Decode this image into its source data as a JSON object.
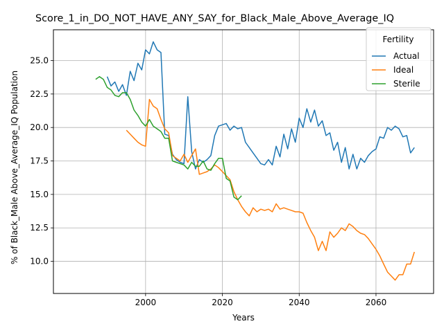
{
  "chart_data": {
    "type": "line",
    "title": "Score_1_in_DO_NOT_HAVE_ANY_SAY_for_Black_Male_Above_Average_IQ",
    "xlabel": "Years",
    "ylabel": "% of Black_Male Above_Average_IQ Population",
    "xlim": [
      1976,
      2075
    ],
    "ylim": [
      7.6,
      27.3
    ],
    "xticks": [
      2000,
      2020,
      2040,
      2060
    ],
    "yticks": [
      10.0,
      12.5,
      15.0,
      17.5,
      20.0,
      22.5,
      25.0
    ],
    "grid": true,
    "legend": {
      "title": "Fertility",
      "position": "top-right"
    },
    "series": [
      {
        "name": "Actual",
        "color": "#1f77b4",
        "points": [
          [
            1990,
            23.8
          ],
          [
            1991,
            23.1
          ],
          [
            1992,
            23.4
          ],
          [
            1993,
            22.7
          ],
          [
            1994,
            23.2
          ],
          [
            1995,
            22.4
          ],
          [
            1996,
            24.2
          ],
          [
            1997,
            23.5
          ],
          [
            1998,
            24.8
          ],
          [
            1999,
            24.3
          ],
          [
            2000,
            25.8
          ],
          [
            2001,
            25.5
          ],
          [
            2002,
            26.4
          ],
          [
            2003,
            25.8
          ],
          [
            2004,
            25.6
          ],
          [
            2005,
            19.5
          ],
          [
            2006,
            19.4
          ],
          [
            2007,
            18.0
          ],
          [
            2008,
            17.6
          ],
          [
            2009,
            17.4
          ],
          [
            2010,
            17.3
          ],
          [
            2011,
            22.3
          ],
          [
            2012,
            18.2
          ],
          [
            2013,
            16.9
          ],
          [
            2014,
            17.6
          ],
          [
            2015,
            17.4
          ],
          [
            2016,
            17.6
          ],
          [
            2017,
            17.9
          ],
          [
            2018,
            19.4
          ],
          [
            2019,
            20.1
          ],
          [
            2020,
            20.2
          ],
          [
            2021,
            20.3
          ],
          [
            2022,
            19.8
          ],
          [
            2023,
            20.1
          ],
          [
            2024,
            19.9
          ],
          [
            2025,
            20.0
          ],
          [
            2026,
            18.9
          ],
          [
            2027,
            18.5
          ],
          [
            2028,
            18.1
          ],
          [
            2029,
            17.7
          ],
          [
            2030,
            17.3
          ],
          [
            2031,
            17.2
          ],
          [
            2032,
            17.6
          ],
          [
            2033,
            17.2
          ],
          [
            2034,
            18.6
          ],
          [
            2035,
            17.8
          ],
          [
            2036,
            19.5
          ],
          [
            2037,
            18.4
          ],
          [
            2038,
            19.9
          ],
          [
            2039,
            18.9
          ],
          [
            2040,
            20.7
          ],
          [
            2041,
            20.0
          ],
          [
            2042,
            21.4
          ],
          [
            2043,
            20.4
          ],
          [
            2044,
            21.3
          ],
          [
            2045,
            20.1
          ],
          [
            2046,
            20.5
          ],
          [
            2047,
            19.4
          ],
          [
            2048,
            19.6
          ],
          [
            2049,
            18.3
          ],
          [
            2050,
            18.9
          ],
          [
            2051,
            17.4
          ],
          [
            2052,
            18.5
          ],
          [
            2053,
            16.9
          ],
          [
            2054,
            18.0
          ],
          [
            2055,
            16.9
          ],
          [
            2056,
            17.7
          ],
          [
            2057,
            17.4
          ],
          [
            2058,
            17.9
          ],
          [
            2059,
            18.2
          ],
          [
            2060,
            18.4
          ],
          [
            2061,
            19.3
          ],
          [
            2062,
            19.2
          ],
          [
            2063,
            20.0
          ],
          [
            2064,
            19.8
          ],
          [
            2065,
            20.1
          ],
          [
            2066,
            19.9
          ],
          [
            2067,
            19.3
          ],
          [
            2068,
            19.4
          ],
          [
            2069,
            18.1
          ],
          [
            2070,
            18.5
          ]
        ]
      },
      {
        "name": "Ideal",
        "color": "#ff7f0e",
        "points": [
          [
            1995,
            19.8
          ],
          [
            1996,
            19.5
          ],
          [
            1997,
            19.2
          ],
          [
            1998,
            18.9
          ],
          [
            1999,
            18.7
          ],
          [
            2000,
            18.6
          ],
          [
            2001,
            22.1
          ],
          [
            2002,
            21.6
          ],
          [
            2003,
            21.4
          ],
          [
            2004,
            20.6
          ],
          [
            2005,
            19.9
          ],
          [
            2006,
            19.6
          ],
          [
            2007,
            17.9
          ],
          [
            2008,
            17.7
          ],
          [
            2009,
            17.5
          ],
          [
            2010,
            18.0
          ],
          [
            2011,
            17.4
          ],
          [
            2012,
            17.9
          ],
          [
            2013,
            18.4
          ],
          [
            2014,
            16.5
          ],
          [
            2015,
            16.6
          ],
          [
            2016,
            16.7
          ],
          [
            2017,
            16.9
          ],
          [
            2018,
            17.2
          ],
          [
            2019,
            17.0
          ],
          [
            2020,
            16.7
          ],
          [
            2021,
            16.4
          ],
          [
            2022,
            16.1
          ],
          [
            2023,
            15.2
          ],
          [
            2024,
            14.6
          ],
          [
            2025,
            14.1
          ],
          [
            2026,
            13.7
          ],
          [
            2027,
            13.4
          ],
          [
            2028,
            14.0
          ],
          [
            2029,
            13.7
          ],
          [
            2030,
            13.9
          ],
          [
            2031,
            13.8
          ],
          [
            2032,
            13.9
          ],
          [
            2033,
            13.7
          ],
          [
            2034,
            14.3
          ],
          [
            2035,
            13.9
          ],
          [
            2036,
            14.0
          ],
          [
            2037,
            13.9
          ],
          [
            2038,
            13.8
          ],
          [
            2039,
            13.7
          ],
          [
            2040,
            13.7
          ],
          [
            2041,
            13.6
          ],
          [
            2042,
            12.9
          ],
          [
            2043,
            12.3
          ],
          [
            2044,
            11.8
          ],
          [
            2045,
            10.8
          ],
          [
            2046,
            11.5
          ],
          [
            2047,
            10.8
          ],
          [
            2048,
            12.2
          ],
          [
            2049,
            11.8
          ],
          [
            2050,
            12.1
          ],
          [
            2051,
            12.5
          ],
          [
            2052,
            12.3
          ],
          [
            2053,
            12.8
          ],
          [
            2054,
            12.6
          ],
          [
            2055,
            12.3
          ],
          [
            2056,
            12.1
          ],
          [
            2057,
            12.0
          ],
          [
            2058,
            11.7
          ],
          [
            2059,
            11.3
          ],
          [
            2060,
            10.9
          ],
          [
            2061,
            10.4
          ],
          [
            2062,
            9.8
          ],
          [
            2063,
            9.2
          ],
          [
            2064,
            8.9
          ],
          [
            2065,
            8.6
          ],
          [
            2066,
            9.0
          ],
          [
            2067,
            9.0
          ],
          [
            2068,
            9.8
          ],
          [
            2069,
            9.8
          ],
          [
            2070,
            10.7
          ]
        ]
      },
      {
        "name": "Sterile",
        "color": "#2ca02c",
        "points": [
          [
            1987,
            23.6
          ],
          [
            1988,
            23.8
          ],
          [
            1989,
            23.6
          ],
          [
            1990,
            23.0
          ],
          [
            1991,
            22.8
          ],
          [
            1992,
            22.4
          ],
          [
            1993,
            22.3
          ],
          [
            1994,
            22.6
          ],
          [
            1995,
            22.6
          ],
          [
            1996,
            22.1
          ],
          [
            1997,
            21.3
          ],
          [
            1998,
            20.9
          ],
          [
            1999,
            20.4
          ],
          [
            2000,
            20.1
          ],
          [
            2001,
            20.6
          ],
          [
            2002,
            20.1
          ],
          [
            2003,
            19.9
          ],
          [
            2004,
            19.7
          ],
          [
            2005,
            19.2
          ],
          [
            2006,
            19.2
          ],
          [
            2007,
            17.5
          ],
          [
            2008,
            17.4
          ],
          [
            2009,
            17.3
          ],
          [
            2010,
            17.2
          ],
          [
            2011,
            16.9
          ],
          [
            2012,
            17.4
          ],
          [
            2013,
            17.1
          ],
          [
            2014,
            17.1
          ],
          [
            2015,
            17.5
          ],
          [
            2016,
            16.9
          ],
          [
            2017,
            16.8
          ],
          [
            2018,
            17.3
          ],
          [
            2019,
            17.7
          ],
          [
            2020,
            17.7
          ],
          [
            2021,
            16.2
          ],
          [
            2022,
            16.0
          ],
          [
            2023,
            14.8
          ],
          [
            2024,
            14.6
          ],
          [
            2025,
            14.9
          ]
        ]
      }
    ]
  }
}
